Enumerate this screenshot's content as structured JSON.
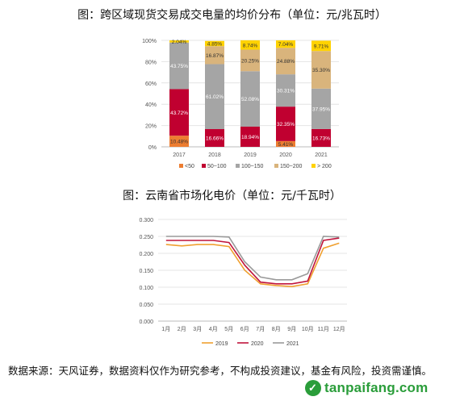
{
  "chart_data": [
    {
      "type": "bar",
      "stacked": true,
      "percent": true,
      "title": "图：跨区域现货交易成交电量的均价分布（单位：元/兆瓦时）",
      "categories": [
        "2017",
        "2018",
        "2019",
        "2020",
        "2021"
      ],
      "ylim": [
        0,
        100
      ],
      "yticks": [
        "0%",
        "20%",
        "40%",
        "60%",
        "80%",
        "100%"
      ],
      "legend_position": "bottom",
      "series": [
        {
          "name": "<50",
          "color": "#ED7D31",
          "values": [
            10.48,
            0,
            0,
            5.41,
            0
          ],
          "labels": [
            "10.48%",
            "",
            "",
            "5.41%",
            ""
          ]
        },
        {
          "name": "50~100",
          "color": "#C00030",
          "values": [
            43.72,
            16.66,
            18.94,
            32.35,
            16.73
          ],
          "labels": [
            "43.72%",
            "16.66%",
            "18.94%",
            "32.35%",
            "16.73%"
          ]
        },
        {
          "name": "100~150",
          "color": "#A5A5A5",
          "values": [
            43.75,
            61.02,
            52.08,
            30.31,
            37.95
          ],
          "labels": [
            "43.75%",
            "61.02%",
            "52.08%",
            "30.31%",
            "37.95%"
          ]
        },
        {
          "name": "150~200",
          "color": "#D9B47C",
          "values": [
            0,
            16.87,
            20.25,
            24.88,
            35.3
          ],
          "labels": [
            "",
            "16.87%",
            "20.25%",
            "24.88%",
            "35.30%"
          ]
        },
        {
          "name": "> 200",
          "color": "#FFD200",
          "values": [
            2.04,
            4.85,
            8.74,
            7.04,
            9.71
          ],
          "labels": [
            "2.04%",
            "4.85%",
            "8.74%",
            "7.04%",
            "9.71%"
          ]
        }
      ]
    },
    {
      "type": "line",
      "title": "图：云南省市场化电价（单位：元/千瓦时）",
      "categories": [
        "1月",
        "2月",
        "3月",
        "4月",
        "5月",
        "6月",
        "7月",
        "8月",
        "9月",
        "10月",
        "11月",
        "12月"
      ],
      "ylim": [
        0,
        0.3
      ],
      "yticks": [
        "0.000",
        "0.050",
        "0.100",
        "0.150",
        "0.200",
        "0.250",
        "0.300"
      ],
      "legend_position": "bottom",
      "series": [
        {
          "name": "2019",
          "color": "#F0A030",
          "values": [
            0.226,
            0.222,
            0.226,
            0.226,
            0.22,
            0.15,
            0.11,
            0.105,
            0.102,
            0.11,
            0.215,
            0.23
          ]
        },
        {
          "name": "2020",
          "color": "#C0143C",
          "values": [
            0.238,
            0.238,
            0.238,
            0.238,
            0.232,
            0.165,
            0.115,
            0.11,
            0.11,
            0.118,
            0.238,
            0.245
          ]
        },
        {
          "name": "2021",
          "color": "#9A9A9A",
          "values": [
            0.25,
            0.25,
            0.25,
            0.25,
            0.248,
            0.175,
            0.13,
            0.122,
            0.122,
            0.14,
            0.25,
            0.248
          ]
        }
      ]
    }
  ],
  "footer": {
    "text": "数据来源：天风证券，数据资料仅作为研究参考，不构成投资建议，基金有风险，投资需谨慎。"
  },
  "watermark": {
    "text": "tanpaifang.com",
    "icon": "leaf-icon",
    "color": "#2a9d3a"
  }
}
